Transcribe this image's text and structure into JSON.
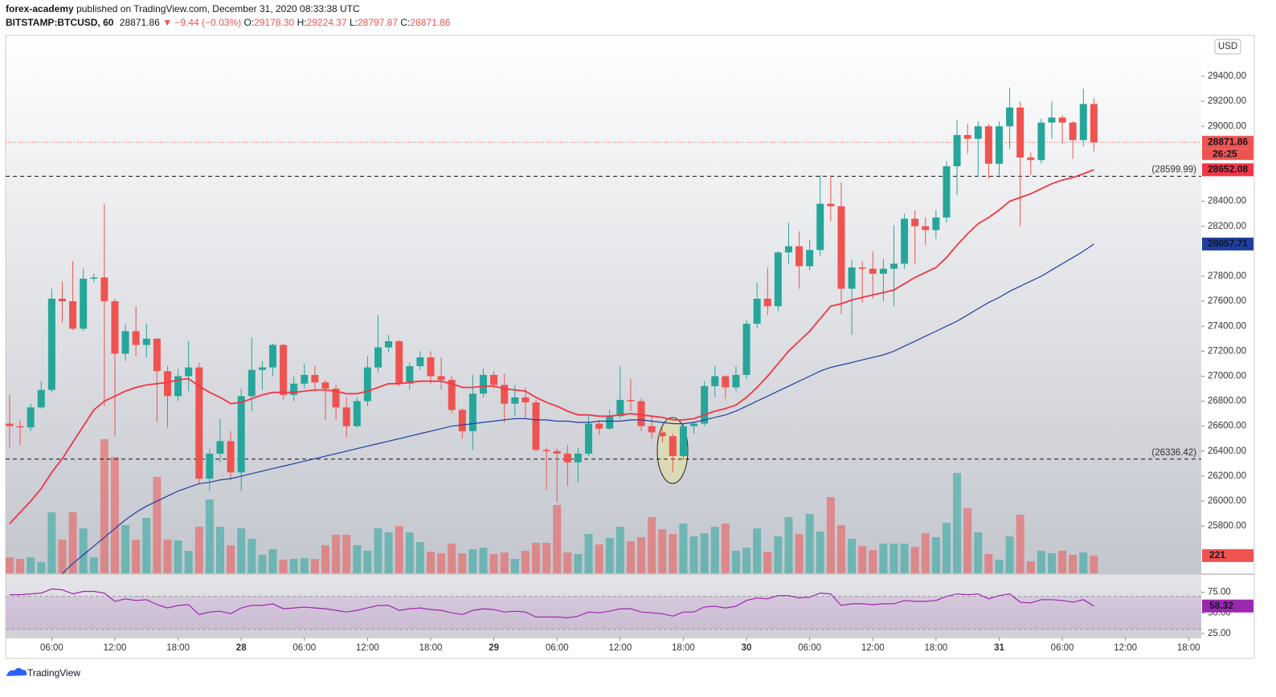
{
  "header": {
    "author": "forex-academy",
    "published": "published on TradingView.com, December 31, 2020 08:33:38 UTC",
    "symbol": "BITSTAMP:BTCUSD, 60",
    "last": "28871.86",
    "change": "▼ −9.44 (−0.03%)",
    "ohlc": [
      {
        "key": "O:",
        "value": "29178.30"
      },
      {
        "key": "H:",
        "value": "29224.37"
      },
      {
        "key": "L:",
        "value": "28797.87"
      },
      {
        "key": "C:",
        "value": "28871.86"
      }
    ]
  },
  "footer": "TradingView",
  "chart_data": {
    "type": "candlestick",
    "up_color": "#26a69a",
    "down_color": "#ef5350",
    "xlim": [
      -0.38,
      113.2
    ],
    "ylim": [
      25422,
      29728
    ],
    "xticks": [
      {
        "value": 4,
        "label": "06:00"
      },
      {
        "value": 10,
        "label": "12:00"
      },
      {
        "value": 16,
        "label": "18:00"
      },
      {
        "value": 22,
        "label": "28"
      },
      {
        "value": 28,
        "label": "06:00"
      },
      {
        "value": 34,
        "label": "12:00"
      },
      {
        "value": 40,
        "label": "18:00"
      },
      {
        "value": 46,
        "label": "29"
      },
      {
        "value": 52,
        "label": "06:00"
      },
      {
        "value": 58,
        "label": "12:00"
      },
      {
        "value": 64,
        "label": "18:00"
      },
      {
        "value": 70,
        "label": "30"
      },
      {
        "value": 76,
        "label": "06:00"
      },
      {
        "value": 82,
        "label": "12:00"
      },
      {
        "value": 88,
        "label": "18:00"
      },
      {
        "value": 94,
        "label": "31"
      },
      {
        "value": 100,
        "label": "06:00"
      },
      {
        "value": 106,
        "label": "12:00"
      },
      {
        "value": 112,
        "label": "18:00"
      }
    ],
    "yticks": [
      {
        "value": 29400,
        "label": "29400.00"
      },
      {
        "value": 29200,
        "label": "29200.00"
      },
      {
        "value": 29000,
        "label": "29000.00"
      },
      {
        "value": 28400,
        "label": "28400.00"
      },
      {
        "value": 28200,
        "label": "28200.00"
      },
      {
        "value": 27800,
        "label": "27800.00"
      },
      {
        "value": 27600,
        "label": "27600.00"
      },
      {
        "value": 27400,
        "label": "27400.00"
      },
      {
        "value": 27200,
        "label": "27200.00"
      },
      {
        "value": 27000,
        "label": "27000.00"
      },
      {
        "value": 26800,
        "label": "26800.00"
      },
      {
        "value": 26600,
        "label": "26600.00"
      },
      {
        "value": 26400,
        "label": "26400.00"
      },
      {
        "value": 26200,
        "label": "26200.00"
      },
      {
        "value": 26000,
        "label": "26000.00"
      },
      {
        "value": 25800,
        "label": "25800.00"
      }
    ],
    "currency": "USD",
    "open": [
      26620,
      26600,
      26590,
      26750,
      26890,
      27620,
      27600,
      27380,
      27780,
      27790,
      27600,
      27180,
      27360,
      27250,
      27300,
      27040,
      26840,
      27000,
      27070,
      26180,
      26380,
      26480,
      26230,
      26840,
      27050,
      27070,
      27250,
      26850,
      26940,
      27010,
      26950,
      26900,
      26750,
      26600,
      26800,
      27070,
      27230,
      27280,
      26940,
      27080,
      27150,
      27000,
      26970,
      26730,
      26560,
      26860,
      27010,
      26930,
      26780,
      26830,
      26790,
      26410,
      26400,
      26380,
      26310,
      26380,
      26620,
      26580,
      26680,
      26810,
      26800,
      26600,
      26550,
      26520,
      26360,
      26600,
      26620,
      26920,
      27000,
      26910,
      27010,
      27420,
      27620,
      27560,
      27990,
      28040,
      27880,
      28010,
      28380,
      28360,
      27700,
      27870,
      27860,
      27820,
      27860,
      27900,
      28260,
      28200,
      28170,
      28270,
      28680,
      28930,
      28900,
      29000,
      28700,
      29000,
      29150,
      28750,
      28730,
      29030,
      29070,
      29030,
      28890,
      29178.3
    ],
    "high": [
      26850,
      26650,
      26780,
      26960,
      27700,
      27760,
      27920,
      27860,
      27820,
      28380,
      27620,
      27420,
      27560,
      27420,
      27300,
      27080,
      27060,
      27280,
      27110,
      26420,
      26660,
      26560,
      26900,
      27310,
      27120,
      27260,
      27260,
      27000,
      27100,
      27080,
      26970,
      26930,
      26830,
      26830,
      27160,
      27490,
      27330,
      27290,
      27110,
      27200,
      27200,
      27150,
      27000,
      26740,
      27010,
      27060,
      27040,
      27020,
      26930,
      26910,
      26810,
      26430,
      26420,
      26450,
      26430,
      26680,
      26650,
      26730,
      27080,
      26980,
      26820,
      26680,
      26590,
      26540,
      26620,
      26640,
      26960,
      27080,
      27010,
      27080,
      27450,
      27750,
      27870,
      28000,
      28230,
      28160,
      28090,
      28610,
      28610,
      28550,
      27930,
      27920,
      28000,
      27940,
      28210,
      28300,
      28330,
      28270,
      28330,
      28720,
      29050,
      29020,
      29040,
      29020,
      29040,
      29310,
      29200,
      28790,
      29060,
      29200,
      29090,
      29040,
      29300,
      29224.37
    ],
    "low": [
      26430,
      26450,
      26560,
      26740,
      26870,
      27430,
      27370,
      27360,
      27750,
      26760,
      26520,
      27120,
      27160,
      27150,
      26630,
      26590,
      26800,
      26880,
      26130,
      26080,
      26310,
      26170,
      26080,
      26720,
      26890,
      27000,
      26810,
      26800,
      26900,
      26880,
      26650,
      26650,
      26510,
      26590,
      26760,
      27030,
      27190,
      26920,
      26890,
      27050,
      26940,
      26890,
      26700,
      26500,
      26410,
      26830,
      26900,
      26630,
      26680,
      26660,
      26400,
      26090,
      25990,
      26120,
      26150,
      26360,
      26530,
      26570,
      26660,
      26720,
      26560,
      26500,
      26470,
      26230,
      26330,
      26540,
      26600,
      26830,
      26820,
      26880,
      26980,
      27380,
      27490,
      27520,
      27900,
      27700,
      27850,
      27960,
      28240,
      27500,
      27330,
      27590,
      27620,
      27600,
      27560,
      27860,
      27900,
      28050,
      28100,
      28230,
      28450,
      28780,
      28600,
      28580,
      28590,
      28820,
      28200,
      28610,
      28700,
      28900,
      28860,
      28740,
      28840,
      28797.87
    ],
    "close": [
      26600,
      26590,
      26750,
      26890,
      27620,
      27600,
      27380,
      27780,
      27790,
      27600,
      27180,
      27360,
      27250,
      27300,
      27040,
      26840,
      27000,
      27070,
      26180,
      26380,
      26480,
      26230,
      26840,
      27050,
      27070,
      27250,
      26850,
      26940,
      27010,
      26950,
      26900,
      26750,
      26600,
      26800,
      27070,
      27230,
      27280,
      26940,
      27080,
      27150,
      27000,
      26970,
      26730,
      26560,
      26860,
      27010,
      26930,
      26780,
      26830,
      26790,
      26410,
      26400,
      26380,
      26310,
      26380,
      26620,
      26580,
      26680,
      26810,
      26800,
      26600,
      26550,
      26520,
      26360,
      26600,
      26620,
      26920,
      27000,
      26910,
      27010,
      27420,
      27620,
      27560,
      27990,
      28040,
      27880,
      28010,
      28380,
      28360,
      27700,
      27870,
      27860,
      27820,
      27860,
      27900,
      28260,
      28200,
      28170,
      28270,
      28680,
      28930,
      28900,
      29000,
      28700,
      29000,
      29150,
      28750,
      28730,
      29030,
      29070,
      29030,
      28890,
      29178.3,
      28871.86
    ],
    "volume_lim": [
      0,
      6700
    ],
    "volume": [
      200,
      180,
      200,
      140,
      760,
      420,
      760,
      560,
      200,
      1670,
      1450,
      600,
      420,
      690,
      1200,
      420,
      410,
      280,
      580,
      920,
      580,
      350,
      560,
      430,
      230,
      300,
      170,
      180,
      190,
      180,
      350,
      480,
      480,
      350,
      280,
      560,
      510,
      590,
      510,
      390,
      270,
      250,
      370,
      250,
      300,
      320,
      240,
      260,
      180,
      280,
      380,
      380,
      850,
      260,
      240,
      490,
      360,
      440,
      580,
      400,
      450,
      700,
      550,
      490,
      620,
      460,
      500,
      580,
      620,
      280,
      320,
      560,
      270,
      460,
      700,
      490,
      740,
      520,
      950,
      600,
      430,
      340,
      290,
      370,
      370,
      370,
      330,
      500,
      450,
      630,
      1250,
      810,
      510,
      240,
      170,
      460,
      730,
      150,
      280,
      250,
      280,
      230,
      260,
      221
    ],
    "ema": [
      {
        "color": "#f23645",
        "values": [
          25820,
          25910,
          26000,
          26100,
          26230,
          26340,
          26470,
          26600,
          26730,
          26800,
          26840,
          26880,
          26910,
          26930,
          26940,
          26950,
          26970,
          26980,
          26920,
          26870,
          26830,
          26780,
          26790,
          26820,
          26850,
          26870,
          26870,
          26870,
          26880,
          26890,
          26890,
          26880,
          26860,
          26860,
          26880,
          26910,
          26940,
          26940,
          26950,
          26960,
          26960,
          26960,
          26940,
          26910,
          26910,
          26920,
          26920,
          26900,
          26890,
          26880,
          26830,
          26790,
          26760,
          26720,
          26690,
          26690,
          26680,
          26680,
          26690,
          26700,
          26690,
          26680,
          26670,
          26650,
          26650,
          26660,
          26690,
          26720,
          26740,
          26770,
          26830,
          26910,
          27000,
          27100,
          27200,
          27280,
          27360,
          27460,
          27560,
          27580,
          27610,
          27630,
          27650,
          27670,
          27690,
          27740,
          27790,
          27830,
          27870,
          27950,
          28050,
          28140,
          28220,
          28270,
          28330,
          28400,
          28430,
          28460,
          28500,
          28540,
          28570,
          28590,
          28620,
          28652.08
        ]
      },
      {
        "color": "#1e3f9e",
        "values": [
          null,
          null,
          null,
          null,
          null,
          25420,
          25500,
          25570,
          25640,
          25710,
          25780,
          25850,
          25910,
          25960,
          26000,
          26040,
          26080,
          26110,
          26140,
          26150,
          26170,
          26180,
          26200,
          26220,
          26240,
          26260,
          26280,
          26300,
          26320,
          26340,
          26360,
          26380,
          26400,
          26420,
          26440,
          26460,
          26480,
          26500,
          26520,
          26540,
          26560,
          26580,
          26600,
          26610,
          26620,
          26630,
          26640,
          26650,
          26660,
          26660,
          26650,
          26650,
          26640,
          26640,
          26630,
          26630,
          26640,
          26640,
          26640,
          26650,
          26650,
          26640,
          26630,
          26620,
          26620,
          26630,
          26650,
          26670,
          26690,
          26720,
          26760,
          26800,
          26840,
          26880,
          26920,
          26960,
          27000,
          27040,
          27070,
          27090,
          27110,
          27130,
          27150,
          27170,
          27200,
          27240,
          27280,
          27320,
          27360,
          27400,
          27440,
          27490,
          27540,
          27590,
          27630,
          27680,
          27720,
          27760,
          27800,
          27850,
          27900,
          27950,
          28000,
          28057.71
        ]
      }
    ],
    "hlines": [
      {
        "value": 28599.99,
        "label": "(28599.99)"
      },
      {
        "value": 26336.42,
        "label": "(26336.42)"
      }
    ],
    "price_labels": [
      {
        "value": 28871.86,
        "label": "28871.86",
        "color": "#ef5350"
      },
      {
        "value": 28652.08,
        "label": "28652.08",
        "color": "#f23645"
      },
      {
        "value": 28057.71,
        "label": "28057.71",
        "color": "#1e3f9e"
      }
    ],
    "countdown": "26:25",
    "volume_label": "221",
    "rsi": {
      "color": "#9c27b0",
      "lim": [
        21,
        96
      ],
      "band": [
        30,
        70
      ],
      "ticks": [
        {
          "value": 75,
          "label": "75.00"
        },
        {
          "value": 50,
          "label": "50.00"
        },
        {
          "value": 25,
          "label": "25.00"
        }
      ],
      "value_label": "58.32",
      "values": [
        72,
        72,
        73,
        74,
        79,
        78,
        73,
        76,
        76,
        74,
        64,
        67,
        65,
        66,
        60,
        56,
        59,
        60,
        48,
        51,
        52,
        49,
        56,
        59,
        59,
        61,
        55,
        56,
        57,
        56,
        55,
        53,
        51,
        53,
        56,
        59,
        59,
        53,
        55,
        56,
        54,
        53,
        50,
        48,
        53,
        55,
        54,
        51,
        52,
        51,
        45,
        45,
        45,
        44,
        46,
        51,
        50,
        52,
        55,
        55,
        51,
        50,
        49,
        46,
        51,
        51,
        57,
        58,
        56,
        58,
        65,
        68,
        67,
        71,
        71,
        68,
        69,
        74,
        73,
        59,
        61,
        61,
        60,
        61,
        61,
        65,
        64,
        64,
        65,
        70,
        73,
        72,
        73,
        67,
        71,
        73,
        63,
        62,
        66,
        66,
        65,
        63,
        66,
        58.32
      ]
    }
  }
}
